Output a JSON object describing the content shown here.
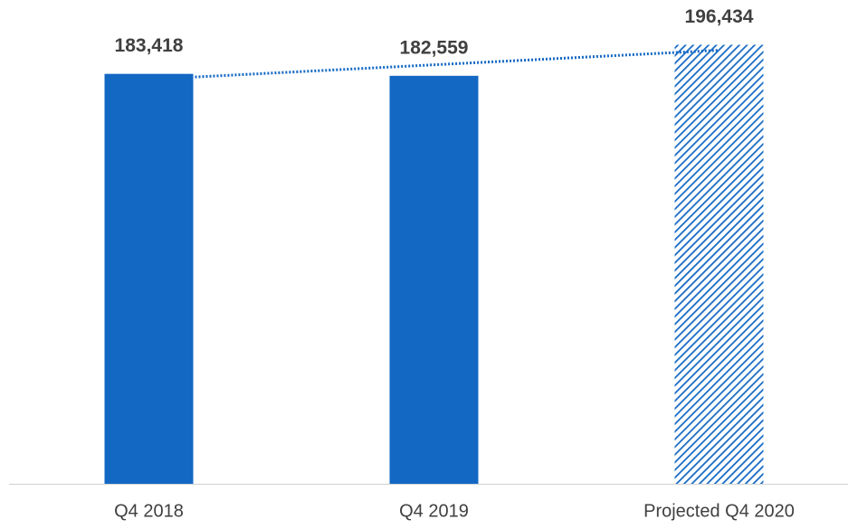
{
  "chart_data": {
    "type": "bar",
    "categories": [
      "Q4 2018",
      "Q4 2019",
      "Projected Q4 2020"
    ],
    "values": [
      183418,
      182559,
      196434
    ],
    "value_labels": [
      "183,418",
      "182,559",
      "196,434"
    ],
    "color": "#1368c4",
    "patterns": [
      "solid",
      "solid",
      "hatch"
    ],
    "trendline": true,
    "ylim": [
      0,
      210000
    ]
  }
}
